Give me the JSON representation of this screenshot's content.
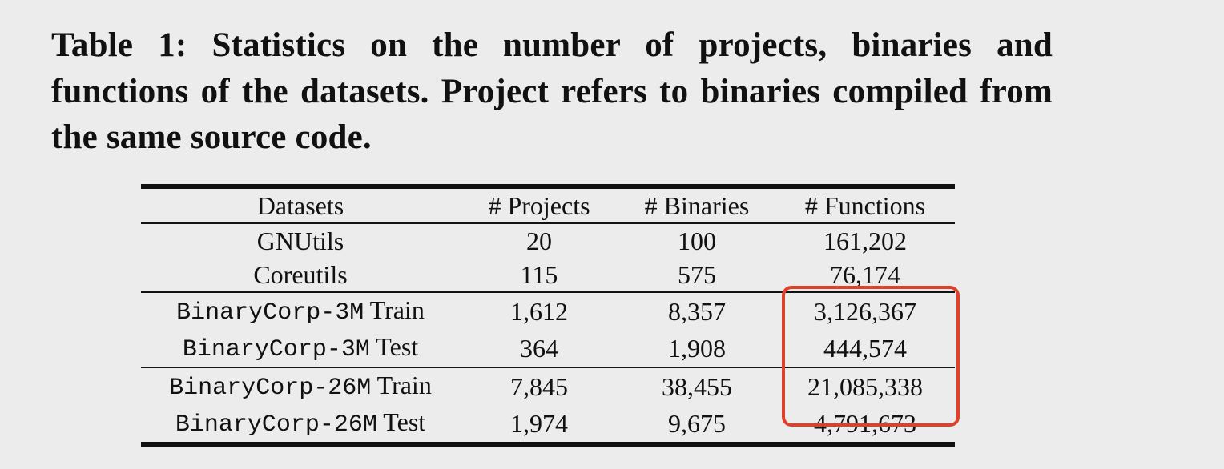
{
  "caption": "Table 1: Statistics on the number of projects, binaries and functions of the datasets. Project refers to binaries compiled from the same source code.",
  "table": {
    "headers": [
      "Datasets",
      "# Projects",
      "# Binaries",
      "# Functions"
    ],
    "groups": [
      {
        "rows": [
          {
            "dataset": "GNUtils",
            "projects": "20",
            "binaries": "100",
            "functions": "161,202"
          },
          {
            "dataset": "Coreutils",
            "projects": "115",
            "binaries": "575",
            "functions": "76,174"
          }
        ]
      },
      {
        "rows": [
          {
            "dataset_mono": "BinaryCorp-3M",
            "dataset_suffix": " Train",
            "projects": "1,612",
            "binaries": "8,357",
            "functions": "3,126,367"
          },
          {
            "dataset_mono": "BinaryCorp-3M",
            "dataset_suffix": " Test",
            "projects": "364",
            "binaries": "1,908",
            "functions": "444,574"
          }
        ]
      },
      {
        "rows": [
          {
            "dataset_mono": "BinaryCorp-26M",
            "dataset_suffix": " Train",
            "projects": "7,845",
            "binaries": "38,455",
            "functions": "21,085,338"
          },
          {
            "dataset_mono": "BinaryCorp-26M",
            "dataset_suffix": " Test",
            "projects": "1,974",
            "binaries": "9,675",
            "functions": "4,791,673"
          }
        ]
      }
    ]
  },
  "annotation": {
    "color": "#e0402a"
  }
}
